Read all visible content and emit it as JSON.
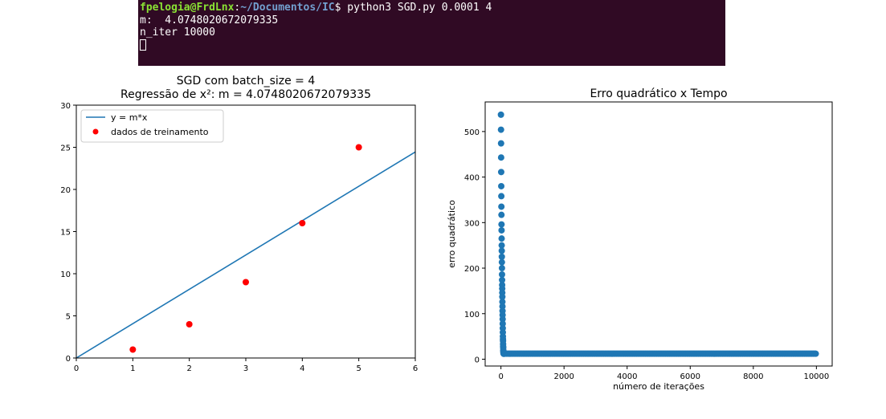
{
  "terminal": {
    "prompt_user": "fpelogia@FrdLnx",
    "prompt_sep": ":",
    "prompt_path": "~/Documentos/IC",
    "prompt_symbol": "$",
    "command": " python3 SGD.py 0.0001 4",
    "output_lines": [
      "m:  4.0748020672079335",
      "n_iter 10000"
    ]
  },
  "chart_data": [
    {
      "type": "scatter",
      "title": "SGD com batch_size = 4",
      "subtitle": "Regressão de x²: m = 4.0748020672079335",
      "xlabel": "",
      "ylabel": "",
      "xlim": [
        0,
        6
      ],
      "ylim": [
        0,
        30
      ],
      "xticks": [
        0,
        1,
        2,
        3,
        4,
        5,
        6
      ],
      "yticks": [
        0,
        5,
        10,
        15,
        20,
        25,
        30
      ],
      "legend_position": "top-left",
      "grid": false,
      "series": [
        {
          "name": "y = m*x",
          "kind": "line",
          "color": "#1f77b4",
          "slope": 4.0748020672079335,
          "x": [
            0,
            6
          ],
          "y": [
            0,
            24.4488
          ]
        },
        {
          "name": "dados de treinamento",
          "kind": "scatter",
          "color": "#ff0000",
          "x": [
            1,
            2,
            3,
            4,
            5
          ],
          "y": [
            1,
            4,
            9,
            16,
            25
          ]
        }
      ]
    },
    {
      "type": "scatter",
      "title": "Erro quadrático x Tempo",
      "xlabel": "número de iterações",
      "ylabel": "erro quadrático",
      "xlim": [
        -500,
        10500
      ],
      "ylim": [
        -15,
        565
      ],
      "xticks": [
        0,
        2000,
        4000,
        6000,
        8000,
        10000
      ],
      "yticks": [
        0,
        100,
        200,
        300,
        400,
        500
      ],
      "grid": false,
      "series": [
        {
          "color": "#1f77b4",
          "x": [
            0,
            2,
            4,
            6,
            8,
            10,
            12,
            14,
            16,
            18,
            20,
            22,
            24,
            26,
            28,
            30,
            32,
            34,
            36,
            38,
            40,
            42,
            44,
            46,
            48,
            50,
            52,
            54,
            56,
            58,
            60,
            62,
            64,
            66,
            68,
            70,
            72,
            74,
            76,
            78,
            80,
            82,
            84,
            86,
            88,
            90,
            92,
            94,
            96,
            98,
            100
          ],
          "y": [
            537,
            504,
            474,
            443,
            411,
            380,
            358,
            335,
            317,
            296,
            283,
            265,
            250,
            238,
            225,
            213,
            200,
            186,
            174,
            163,
            155,
            146,
            137,
            126,
            116,
            106,
            97,
            88,
            78,
            68,
            59,
            50,
            44,
            40,
            33,
            28,
            25,
            20,
            18,
            16,
            14,
            13,
            13,
            12,
            12,
            12,
            12,
            12,
            12,
            12,
            12
          ],
          "tail": {
            "from": 100,
            "to": 10000,
            "step": 40,
            "value": 12
          }
        }
      ]
    }
  ]
}
